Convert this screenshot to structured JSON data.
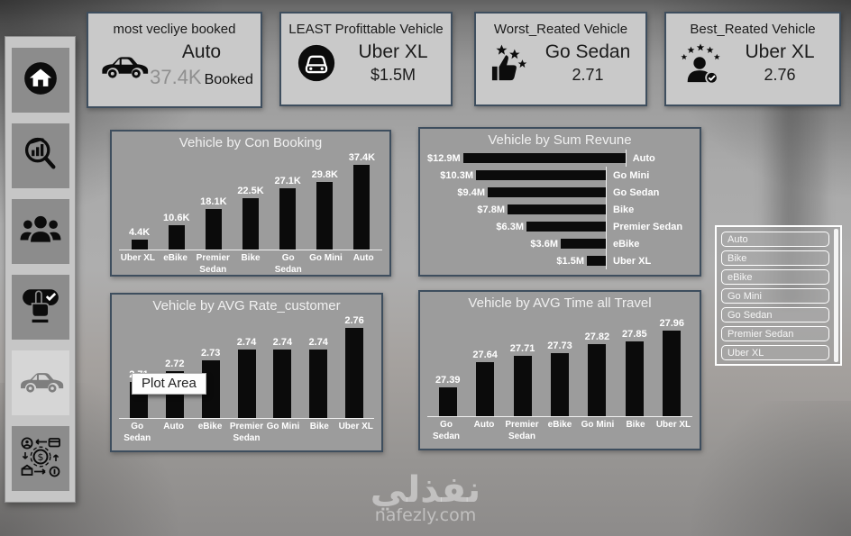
{
  "watermark": {
    "arabic": "نفذلي",
    "domain": "nafezly.com"
  },
  "tooltip": {
    "label": "Plot Area"
  },
  "colors": {
    "panel_border": "#3e4e5e",
    "chart_bg": "#9c9c9c",
    "card_bg": "#c9c9c9",
    "bar": "#0b0b0b",
    "label_text": "#ffffff",
    "muted_metric": "#8f8f8f"
  },
  "cards": [
    {
      "title": "most vecliye booked",
      "icon": "car-side-icon",
      "value": "Auto",
      "metric": "37.4K",
      "metric_suffix": "Booked"
    },
    {
      "title": "LEAST Profittable Vehicle",
      "icon": "car-front-circle-icon",
      "value": "Uber XL",
      "metric": "$1.5M"
    },
    {
      "title": "Worst_Reated Vehicle",
      "icon": "thumbs-up-stars-icon",
      "value": "Go Sedan",
      "metric": "2.71"
    },
    {
      "title": "Best_Reated Vehicle",
      "icon": "person-stars-check-icon",
      "value": "Uber XL",
      "metric": "2.76"
    }
  ],
  "sidebar": {
    "items": [
      {
        "id": "home",
        "icon": "home-icon",
        "active": false
      },
      {
        "id": "analytics-search",
        "icon": "magnifier-chart-icon",
        "active": false
      },
      {
        "id": "customers",
        "icon": "people-icon",
        "active": false
      },
      {
        "id": "booking",
        "icon": "press-hand-check-icon",
        "active": false
      },
      {
        "id": "vehicles",
        "icon": "car-icon",
        "active": true
      },
      {
        "id": "revenue",
        "icon": "money-cycle-icon",
        "active": false
      }
    ]
  },
  "slicer": {
    "items": [
      "Auto",
      "Bike",
      "eBike",
      "Go Mini",
      "Go Sedan",
      "Premier Sedan",
      "Uber XL"
    ]
  },
  "chart_data": [
    {
      "type": "bar",
      "orientation": "vertical",
      "title": "Vehicle by Con Booking",
      "categories": [
        "Uber XL",
        "eBike",
        "Premier Sedan",
        "Bike",
        "Go Sedan",
        "Go Mini",
        "Auto"
      ],
      "values": [
        4400,
        10600,
        18100,
        22500,
        27100,
        29800,
        37400
      ],
      "labels": [
        "4.4K",
        "10.6K",
        "18.1K",
        "22.5K",
        "27.1K",
        "29.8K",
        "37.4K"
      ],
      "ylim": [
        0,
        40000
      ],
      "grid": false,
      "legend": false
    },
    {
      "type": "bar",
      "orientation": "horizontal",
      "title": "Vehicle by Sum Revune",
      "categories": [
        "Auto",
        "Go Mini",
        "Go Sedan",
        "Bike",
        "Premier Sedan",
        "eBike",
        "Uber XL"
      ],
      "values": [
        12.9,
        10.3,
        9.4,
        7.8,
        6.3,
        3.6,
        1.5
      ],
      "labels": [
        "$12.9M",
        "$10.3M",
        "$9.4M",
        "$7.8M",
        "$6.3M",
        "$3.6M",
        "$1.5M"
      ],
      "xlim": [
        0,
        12.9
      ],
      "grid": false,
      "legend": false
    },
    {
      "type": "bar",
      "orientation": "vertical",
      "title": "Vehicle by AVG Rate_customer",
      "categories": [
        "Go Sedan",
        "Auto",
        "eBike",
        "Premier Sedan",
        "Go Mini",
        "Bike",
        "Uber XL"
      ],
      "values": [
        2.71,
        2.72,
        2.73,
        2.74,
        2.74,
        2.74,
        2.76
      ],
      "labels": [
        "2.71",
        "2.72",
        "2.73",
        "2.74",
        "2.74",
        "2.74",
        "2.76"
      ],
      "ylim": [
        2.7,
        2.77
      ],
      "baseline": "non-zero",
      "grid": false,
      "legend": false
    },
    {
      "type": "bar",
      "orientation": "vertical",
      "title": "Vehicle by AVG Time all Travel",
      "categories": [
        "Go Sedan",
        "Auto",
        "Premier Sedan",
        "eBike",
        "Go Mini",
        "Bike",
        "Uber XL"
      ],
      "values": [
        27.39,
        27.64,
        27.71,
        27.73,
        27.82,
        27.85,
        27.96
      ],
      "labels": [
        "27.39",
        "27.64",
        "27.71",
        "27.73",
        "27.82",
        "27.85",
        "27.96"
      ],
      "ylim": [
        27.3,
        28.0
      ],
      "baseline": "non-zero",
      "grid": false,
      "legend": false
    }
  ]
}
